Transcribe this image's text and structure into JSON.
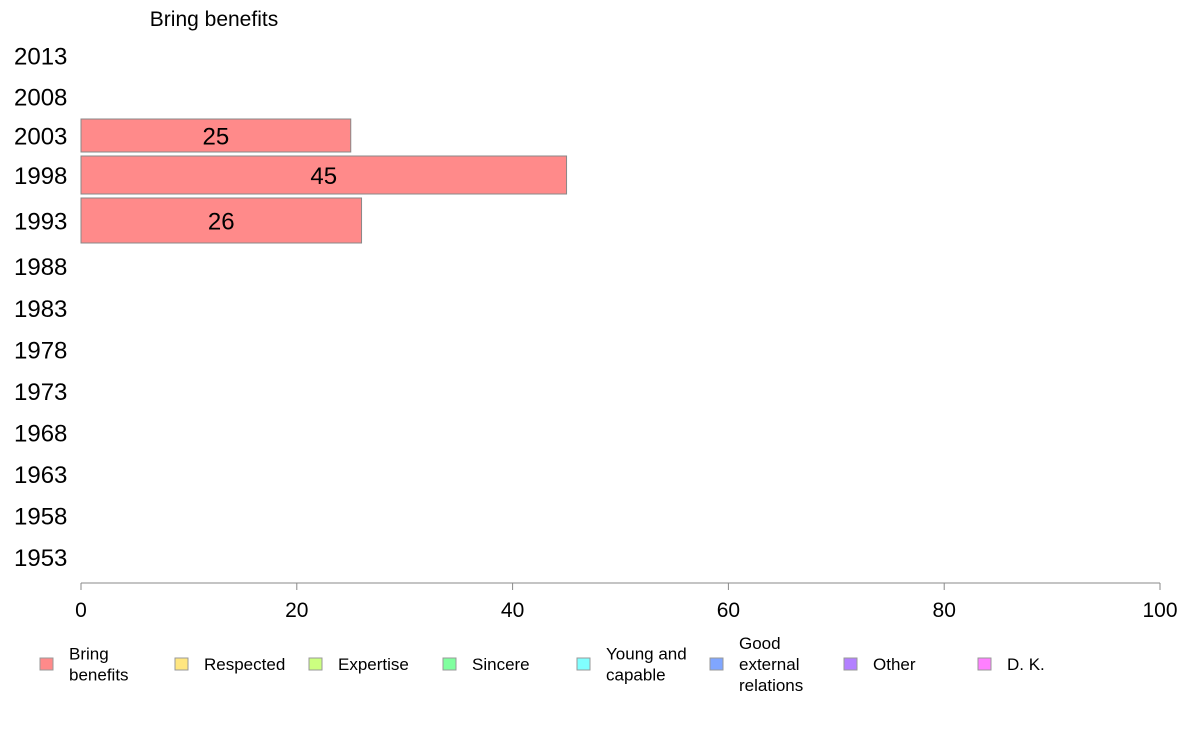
{
  "chart_data": {
    "type": "bar",
    "orientation": "horizontal",
    "title": "Bring benefits",
    "categories": [
      "2013",
      "2008",
      "2003",
      "1998",
      "1993",
      "1988",
      "1983",
      "1978",
      "1973",
      "1968",
      "1963",
      "1958",
      "1953"
    ],
    "series": [
      {
        "name": "Bring benefits",
        "color": "#ff8a8a",
        "values": [
          null,
          null,
          25,
          45,
          26,
          null,
          null,
          null,
          null,
          null,
          null,
          null,
          null
        ]
      }
    ],
    "xlim": [
      0,
      100
    ],
    "xticks": [
      0,
      20,
      40,
      60,
      80,
      100
    ],
    "xlabel": "",
    "ylabel": "",
    "grid": false,
    "legend_position": "bottom",
    "legend": [
      {
        "label": "Bring benefits",
        "color": "#ff8a8a"
      },
      {
        "label": "Respected",
        "color": "#ffe680"
      },
      {
        "label": "Expertise",
        "color": "#ccff80"
      },
      {
        "label": "Sincere",
        "color": "#80ff9f"
      },
      {
        "label": "Young and capable",
        "color": "#80ffff"
      },
      {
        "label": "Good external relations",
        "color": "#80a6ff"
      },
      {
        "label": "Other",
        "color": "#b380ff"
      },
      {
        "label": "D. K.",
        "color": "#ff80ff"
      }
    ]
  }
}
